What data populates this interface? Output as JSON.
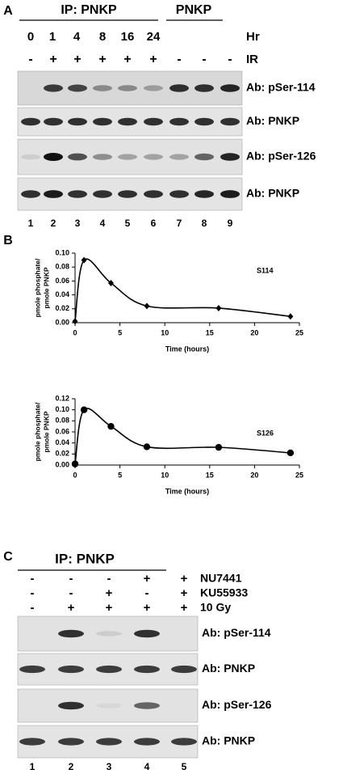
{
  "panel_a": {
    "label": "A",
    "ip_header": "IP: PNKP",
    "input_header": "PNKP",
    "hours": [
      "0",
      "1",
      "4",
      "8",
      "16",
      "24"
    ],
    "hours_label": "Hr",
    "ir_signs": [
      "-",
      "+",
      "+",
      "+",
      "+",
      "+",
      "-",
      "-",
      "-"
    ],
    "ir_label": "IR",
    "blots": [
      "Ab: pSer-114",
      "Ab: PNKP",
      "Ab: pSer-126",
      "Ab: PNKP"
    ],
    "lanes": [
      "1",
      "2",
      "3",
      "4",
      "5",
      "6",
      "7",
      "8",
      "9"
    ]
  },
  "panel_b": {
    "label": "B"
  },
  "chart_data": [
    {
      "type": "line",
      "annotation": "S114",
      "y_label": [
        "pmole phosphate/",
        "pmole PNKP"
      ],
      "x_label": "Time (hours)",
      "x": [
        0,
        1,
        4,
        8,
        16,
        24
      ],
      "values": [
        0.002,
        0.09,
        0.057,
        0.024,
        0.021,
        0.009
      ],
      "color": "#000000",
      "marker": "diamond",
      "xlim": [
        0,
        25
      ],
      "xticks": [
        0,
        5,
        10,
        15,
        20,
        25
      ],
      "ylim": [
        0,
        0.1
      ],
      "yticks": [
        {
          "value": 0,
          "label": "0.00"
        },
        {
          "value": 0.02,
          "label": "0.02"
        },
        {
          "value": 0.04,
          "label": "0.04"
        },
        {
          "value": 0.06,
          "label": "0.06"
        },
        {
          "value": 0.08,
          "label": "0.08"
        },
        {
          "value": 0.1,
          "label": "0.10"
        }
      ]
    },
    {
      "type": "line",
      "annotation": "S126",
      "y_label": [
        "pmole phosphate/",
        "pmole PNKP"
      ],
      "x_label": "Time (hours)",
      "x": [
        0,
        1,
        4,
        8,
        16,
        24
      ],
      "values": [
        0.002,
        0.1,
        0.07,
        0.033,
        0.032,
        0.022
      ],
      "color": "#000000",
      "marker": "circle",
      "xlim": [
        0,
        25
      ],
      "xticks": [
        0,
        5,
        10,
        15,
        20,
        25
      ],
      "ylim": [
        0,
        0.12
      ],
      "yticks": [
        {
          "value": 0,
          "label": "0.00"
        },
        {
          "value": 0.02,
          "label": "0.02"
        },
        {
          "value": 0.04,
          "label": "0.04"
        },
        {
          "value": 0.06,
          "label": "0.06"
        },
        {
          "value": 0.08,
          "label": "0.08"
        },
        {
          "value": 0.1,
          "label": "0.10"
        },
        {
          "value": 0.12,
          "label": "0.12"
        }
      ]
    }
  ],
  "panel_c": {
    "label": "C",
    "ip_header": "IP: PNKP",
    "treatments": [
      {
        "label": "NU7441",
        "signs": [
          "-",
          "-",
          "-",
          "+",
          "+"
        ]
      },
      {
        "label": "KU55933",
        "signs": [
          "-",
          "-",
          "+",
          "-",
          "+"
        ]
      },
      {
        "label": "10 Gy",
        "signs": [
          "-",
          "+",
          "+",
          "+",
          "+"
        ]
      }
    ],
    "blots": [
      "Ab: pSer-114",
      "Ab: PNKP",
      "Ab: pSer-126",
      "Ab: PNKP"
    ],
    "lanes": [
      "1",
      "2",
      "3",
      "4",
      "5"
    ]
  }
}
